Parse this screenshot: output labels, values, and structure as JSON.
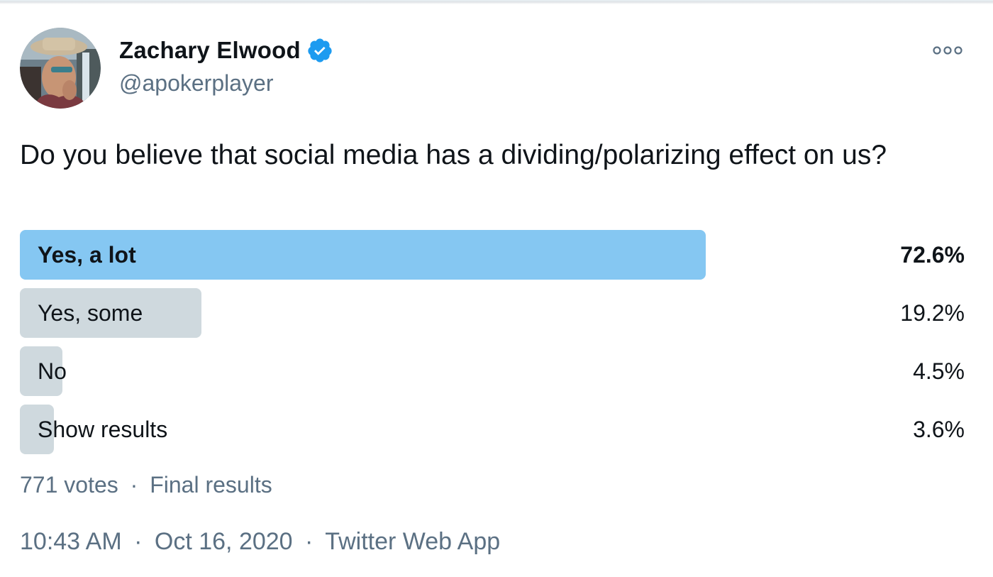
{
  "author": {
    "name": "Zachary Elwood",
    "handle": "@apokerplayer",
    "verified": true,
    "verified_color": "#1d9bf0"
  },
  "tweet": {
    "text": "Do you believe that social media has a dividing/polarizing effect on us?"
  },
  "poll": {
    "options": [
      {
        "label": "Yes, a lot",
        "percent": "72.6%",
        "fill_fraction": 0.726,
        "winner": true
      },
      {
        "label": "Yes, some",
        "percent": "19.2%",
        "fill_fraction": 0.192,
        "winner": false
      },
      {
        "label": "No",
        "percent": "4.5%",
        "fill_fraction": 0.045,
        "winner": false
      },
      {
        "label": "Show results",
        "percent": "3.6%",
        "fill_fraction": 0.036,
        "winner": false
      }
    ],
    "votes": "771 votes",
    "separator": "·",
    "status": "Final results",
    "colors": {
      "winner_bar": "#85c7f2",
      "other_bar": "#cfd9de"
    }
  },
  "footer": {
    "time": "10:43 AM",
    "date": "Oct 16, 2020",
    "source": "Twitter Web App",
    "separator": "·"
  },
  "icons": {
    "more": "more-options-icon",
    "verified": "verified-badge-icon"
  }
}
